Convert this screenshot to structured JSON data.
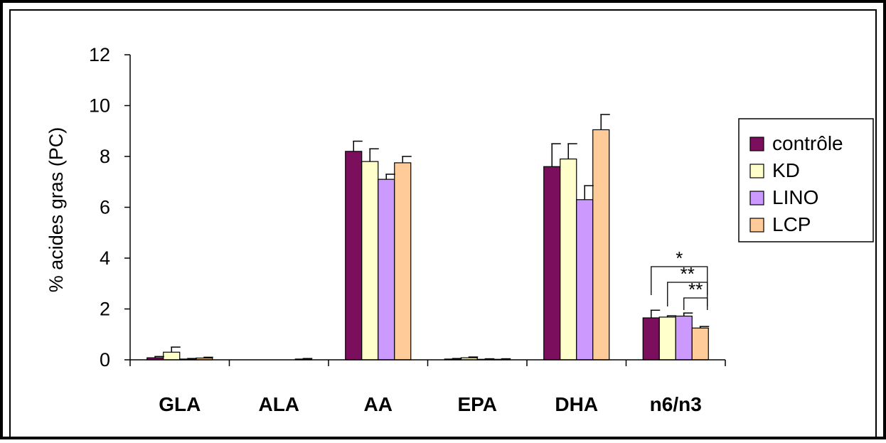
{
  "chart_data": {
    "type": "bar",
    "ylabel": "% acides gras (PC)",
    "xlabel": "",
    "ylim": [
      0,
      12
    ],
    "yticks": [
      "0",
      "2",
      "4",
      "6",
      "8",
      "10",
      "12"
    ],
    "categories": [
      "GLA",
      "ALA",
      "AA",
      "EPA",
      "DHA",
      "n6/n3"
    ],
    "series": [
      {
        "name": "contrôle",
        "color": "#7b0f5e",
        "values": [
          0.08,
          0.0,
          8.2,
          0.03,
          7.6,
          1.65
        ],
        "errors": [
          0.05,
          0.0,
          0.4,
          0.02,
          0.9,
          0.3
        ]
      },
      {
        "name": "KD",
        "color": "#ffffcc",
        "values": [
          0.3,
          0.0,
          7.8,
          0.08,
          7.9,
          1.68
        ],
        "errors": [
          0.2,
          0.0,
          0.5,
          0.03,
          0.6,
          0.05
        ]
      },
      {
        "name": "LINO",
        "color": "#cc99ff",
        "values": [
          0.03,
          0.0,
          7.1,
          0.02,
          6.3,
          1.72
        ],
        "errors": [
          0.02,
          0.0,
          0.2,
          0.02,
          0.55,
          0.12
        ]
      },
      {
        "name": "LCP",
        "color": "#ffcc99",
        "values": [
          0.07,
          0.03,
          7.75,
          0.02,
          9.05,
          1.25
        ],
        "errors": [
          0.03,
          0.02,
          0.25,
          0.02,
          0.6,
          0.06
        ]
      }
    ],
    "legend_position": "right",
    "significance": [
      {
        "category": "n6/n3",
        "from": "contrôle",
        "to": "LCP",
        "label": "*",
        "level": 0
      },
      {
        "category": "n6/n3",
        "from": "KD",
        "to": "LCP",
        "label": "**",
        "level": 1
      },
      {
        "category": "n6/n3",
        "from": "LINO",
        "to": "LCP",
        "label": "**",
        "level": 2
      }
    ]
  }
}
